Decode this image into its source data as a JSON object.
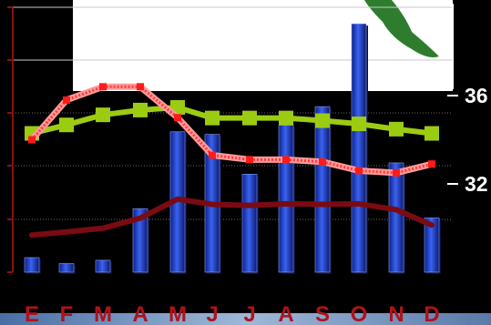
{
  "chart_data": {
    "type": "bar",
    "categories": [
      "E",
      "F",
      "M",
      "A",
      "M",
      "J",
      "J",
      "A",
      "S",
      "O",
      "N",
      "D"
    ],
    "bars": {
      "values": [
        2.2,
        1.3,
        1.8,
        9.6,
        21.2,
        20.8,
        14.8,
        22.2,
        25.0,
        37.5,
        16.5,
        8.2
      ],
      "ylim": [
        0,
        40
      ],
      "color": "#2a4fd8"
    },
    "series": [
      {
        "values": [
          7.0,
          7.6,
          8.3,
          10.2,
          13.8,
          12.8,
          12.6,
          12.9,
          12.8,
          12.9,
          11.8,
          8.9
        ],
        "color": "#7a0b12",
        "ylim": [
          0,
          50
        ]
      },
      {
        "values": [
          26.2,
          27.8,
          29.7,
          30.6,
          31.1,
          29.1,
          29.1,
          29.1,
          28.6,
          28.0,
          27.0,
          26.2
        ],
        "color": "#9ccc12",
        "ylim": [
          0,
          50
        ]
      },
      {
        "values": [
          34.0,
          35.8,
          36.4,
          36.4,
          35.0,
          33.3,
          33.1,
          33.1,
          33.0,
          32.6,
          32.5,
          32.9
        ],
        "color": "#ff3a3a",
        "ylim": [
          28,
          40
        ]
      }
    ],
    "right_axis": {
      "ticks": [
        "36",
        "32"
      ],
      "ylim": [
        28,
        40
      ]
    },
    "grid": true,
    "legend": "none"
  }
}
